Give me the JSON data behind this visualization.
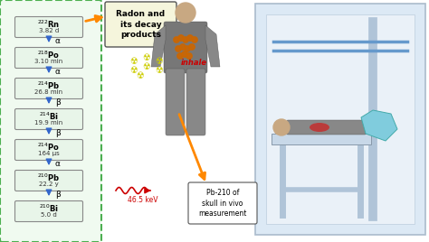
{
  "bg_color": "#ffffff",
  "chain_border_color": "#4caf50",
  "box_fill": "#e8f5e9",
  "arrow_color": "#3366cc",
  "decay_chain": [
    {
      "display": "$^{222}$Rn",
      "half_life": "3.82 d",
      "decay": "α"
    },
    {
      "display": "$^{218}$Po",
      "half_life": "3.10 min",
      "decay": "α"
    },
    {
      "display": "$^{214}$Pb",
      "half_life": "26.8 min",
      "decay": "β"
    },
    {
      "display": "$^{214}$Bi",
      "half_life": "19.9 min",
      "decay": "β"
    },
    {
      "display": "$^{214}$Po",
      "half_life": "164 μs",
      "decay": "α"
    },
    {
      "display": "$^{210}$Pb",
      "half_life": "22.2 y",
      "decay": "β"
    },
    {
      "display": "$^{210}$Bi",
      "half_life": "5.0 d",
      "decay": null
    }
  ],
  "title_text": "Radon and\nits decay\nproducts",
  "title_bg": "#f5f5dc",
  "title_border": "#555555",
  "inhale_text": "inhale",
  "inhale_color": "#cc0000",
  "pb210_label": "Pb-210 of\nskull in vivo\nmeasurement",
  "pb210_bg": "#ffffff",
  "pb210_border": "#555555",
  "energy_text": "46.5 keV",
  "energy_color": "#cc0000",
  "arrow_orange": "#ff8800",
  "radiation_color": "#cccc00",
  "scanner_bg": "#dce9f5",
  "scanner_rail_color": "#6699cc",
  "scanner_frame_color": "#aabbcc"
}
